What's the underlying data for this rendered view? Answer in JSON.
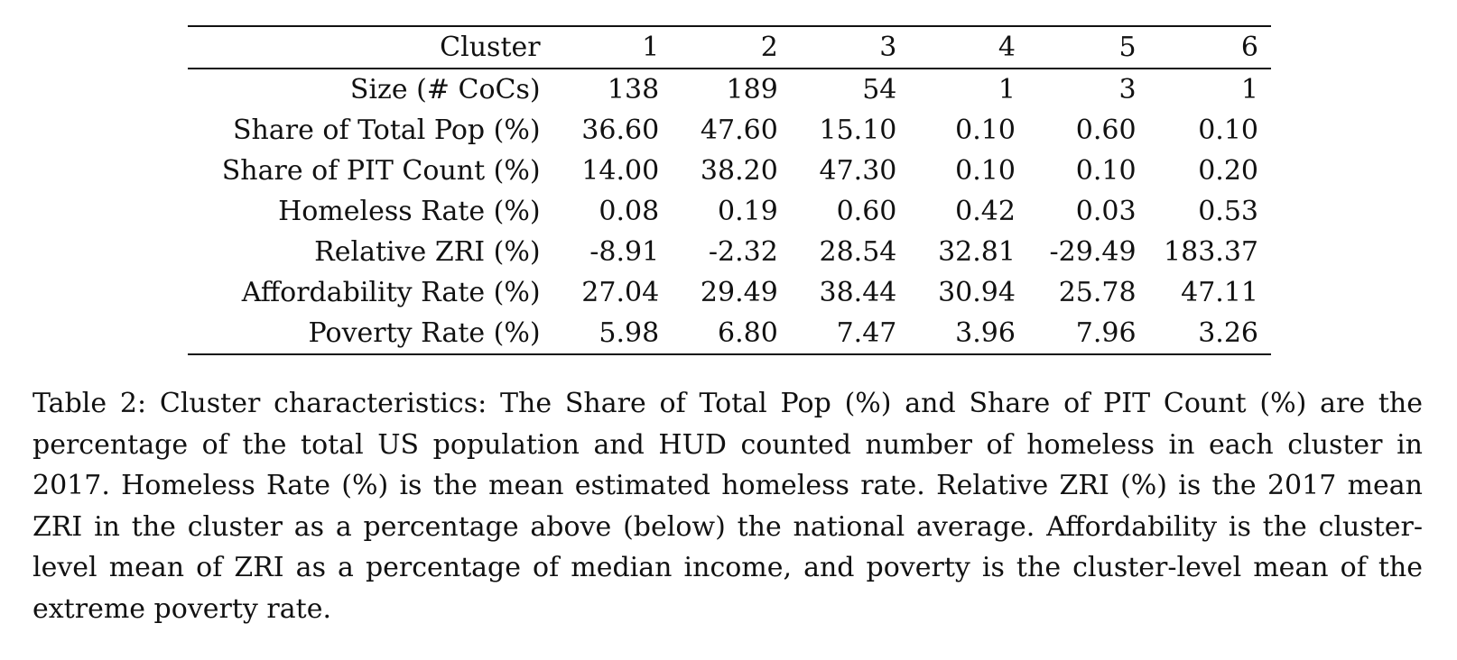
{
  "table": {
    "header_label": "Cluster",
    "columns": [
      "1",
      "2",
      "3",
      "4",
      "5",
      "6"
    ],
    "rows": [
      {
        "label": "Size (# CoCs)",
        "values": [
          "138",
          "189",
          "54",
          "1",
          "3",
          "1"
        ]
      },
      {
        "label": "Share of Total Pop (%)",
        "values": [
          "36.60",
          "47.60",
          "15.10",
          "0.10",
          "0.60",
          "0.10"
        ]
      },
      {
        "label": "Share of PIT Count (%)",
        "values": [
          "14.00",
          "38.20",
          "47.30",
          "0.10",
          "0.10",
          "0.20"
        ]
      },
      {
        "label": "Homeless Rate (%)",
        "values": [
          "0.08",
          "0.19",
          "0.60",
          "0.42",
          "0.03",
          "0.53"
        ]
      },
      {
        "label": "Relative ZRI (%)",
        "values": [
          "-8.91",
          "-2.32",
          "28.54",
          "32.81",
          "-29.49",
          "183.37"
        ]
      },
      {
        "label": "Affordability Rate (%)",
        "values": [
          "27.04",
          "29.49",
          "38.44",
          "30.94",
          "25.78",
          "47.11"
        ]
      },
      {
        "label": "Poverty Rate (%)",
        "values": [
          "5.98",
          "6.80",
          "7.47",
          "3.96",
          "7.96",
          "3.26"
        ]
      }
    ]
  },
  "caption": "Table 2: Cluster characteristics: The Share of Total Pop (%) and Share of PIT Count (%) are the percentage of the total US population and HUD counted number of homeless in each cluster in 2017. Homeless Rate (%) is the mean estimated homeless rate. Relative ZRI (%) is the 2017 mean ZRI in the cluster as a percentage above (below) the national average. Affordability is the cluster-level mean of ZRI as a percentage of median income, and poverty is the cluster-level mean of the extreme poverty rate."
}
